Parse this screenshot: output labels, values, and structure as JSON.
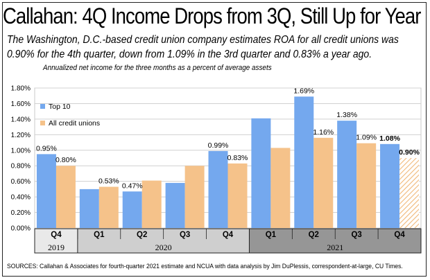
{
  "title": "Callahan: 4Q Income Drops from 3Q, Still Up for Year",
  "subtitle": "The Washington, D.C.-based credit union company estimates ROA for all credit unions was 0.90% for the 4th quarter, down from 1.09% in the 3rd quarter and 0.83% a year ago.",
  "source": "SOURCES: Callahan & Associates for fourth-quarter 2021 estimate and NCUA with data analysis by Jim DuPlessis, correspondent-at-large, CU Times.",
  "chart_data": {
    "type": "bar",
    "note": "Annualized net income for the three months as a percent of average assets",
    "categories": [
      "Q4",
      "Q1",
      "Q2",
      "Q3",
      "Q4",
      "Q1",
      "Q2",
      "Q3",
      "Q4"
    ],
    "years": [
      {
        "label": "2019",
        "span": [
          0,
          0
        ]
      },
      {
        "label": "2020",
        "span": [
          1,
          4
        ]
      },
      {
        "label": "2021",
        "span": [
          5,
          8
        ]
      }
    ],
    "ylim": [
      0,
      1.8
    ],
    "yticks": [
      "0.00%",
      "0.20%",
      "0.40%",
      "0.60%",
      "0.80%",
      "1.00%",
      "1.20%",
      "1.40%",
      "1.60%",
      "1.80%"
    ],
    "grid": true,
    "legend": "top-left",
    "series": [
      {
        "name": "Top 10",
        "color": "#74a8ee",
        "values": [
          0.95,
          0.5,
          0.47,
          0.58,
          0.99,
          1.41,
          1.69,
          1.38,
          1.08
        ],
        "labels": [
          "0.95%",
          "",
          "0.47%",
          "",
          "0.99%",
          "",
          "1.69%",
          "1.38%",
          "1.08%"
        ]
      },
      {
        "name": "All credit unions",
        "color": "#f5c28a",
        "values": [
          0.8,
          0.53,
          0.61,
          0.8,
          0.83,
          1.03,
          1.16,
          1.09,
          0.9
        ],
        "labels": [
          "0.80%",
          "0.53%",
          "",
          "",
          "0.83%",
          "",
          "1.16%",
          "1.09%",
          "0.90%"
        ]
      }
    ]
  }
}
